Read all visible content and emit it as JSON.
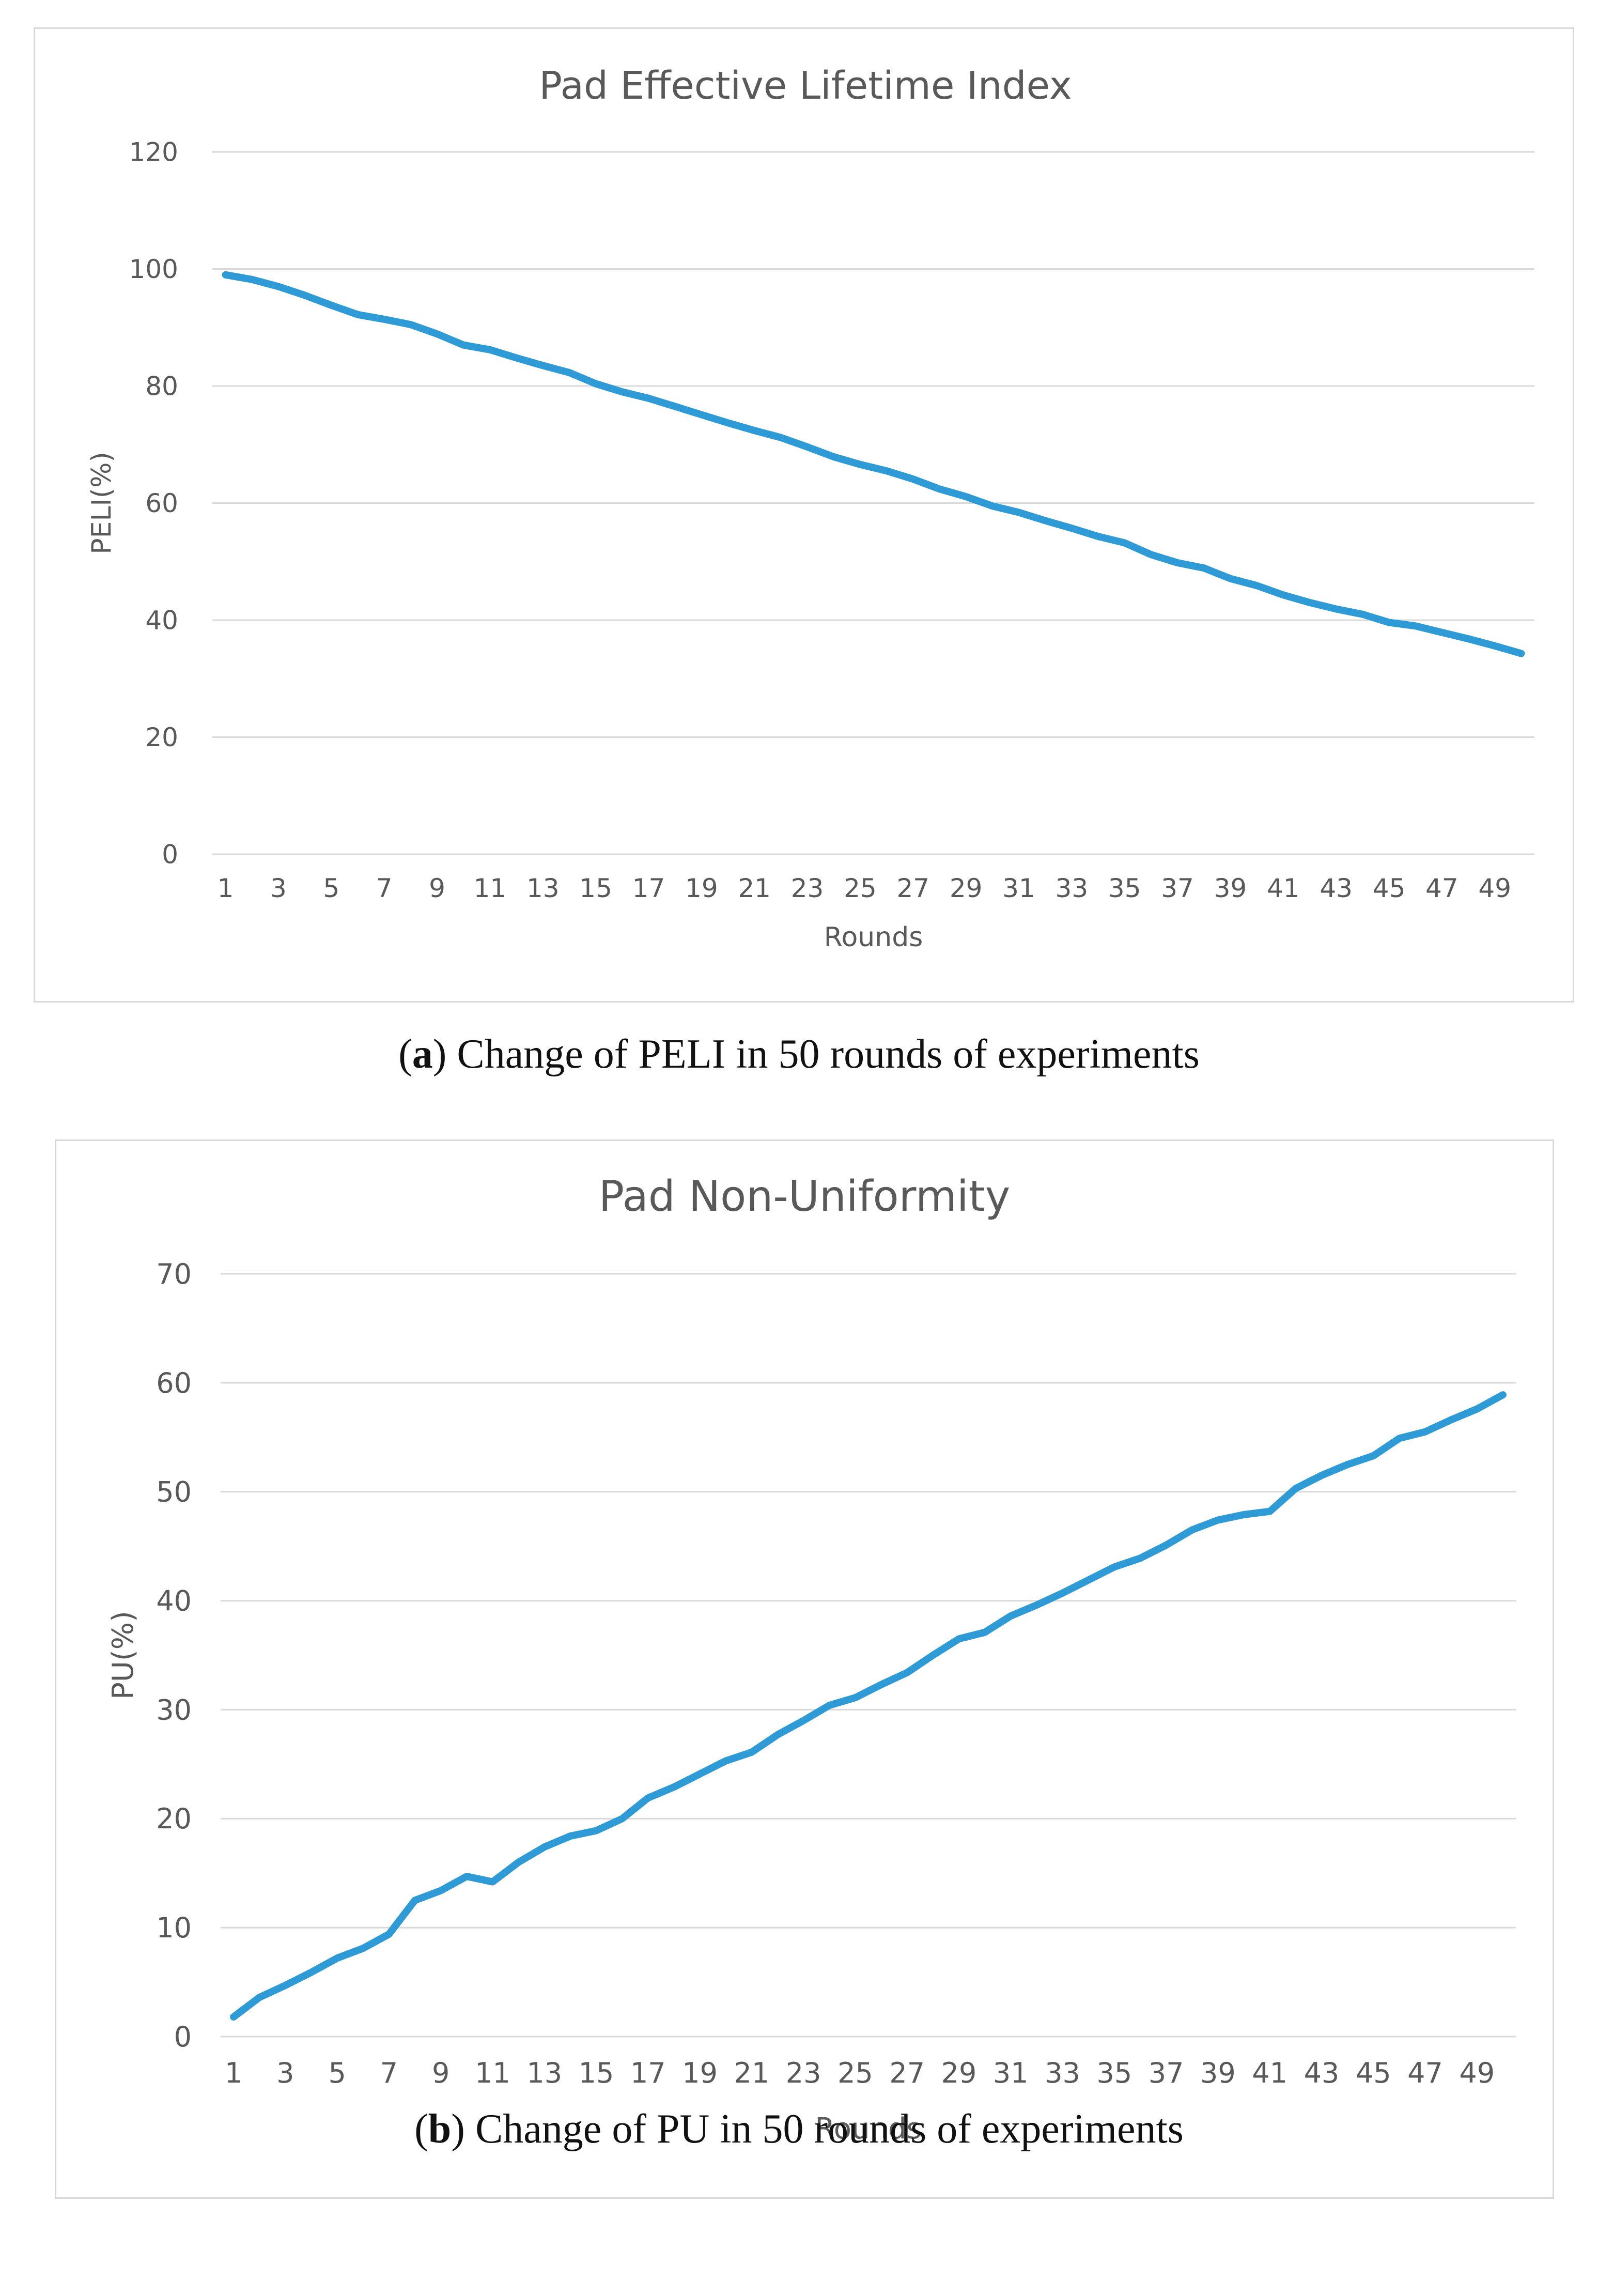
{
  "captions": [
    {
      "letter": "a",
      "text": ") Change of PELI in 50 rounds of experiments",
      "open": "("
    },
    {
      "letter": "b",
      "text": ") Change of PU in 50 rounds of experiments",
      "open": "("
    }
  ],
  "chart_data": [
    {
      "type": "line",
      "title": "Pad Effective Lifetime Index",
      "xlabel": "Rounds",
      "ylabel": "PELI(%)",
      "ylim": [
        0,
        120
      ],
      "yticks": [
        0,
        20,
        40,
        60,
        80,
        100,
        120
      ],
      "grid": true,
      "color": "#2e9bd6",
      "x": [
        1,
        2,
        3,
        4,
        5,
        6,
        7,
        8,
        9,
        10,
        11,
        12,
        13,
        14,
        15,
        16,
        17,
        18,
        19,
        20,
        21,
        22,
        23,
        24,
        25,
        26,
        27,
        28,
        29,
        30,
        31,
        32,
        33,
        34,
        35,
        36,
        37,
        38,
        39,
        40,
        41,
        42,
        43,
        44,
        45,
        46,
        47,
        48,
        49,
        50
      ],
      "xticks": [
        "1",
        "3",
        "5",
        "7",
        "9",
        "11",
        "13",
        "15",
        "17",
        "19",
        "21",
        "23",
        "25",
        "27",
        "29",
        "31",
        "33",
        "35",
        "37",
        "39",
        "41",
        "43",
        "45",
        "47",
        "49"
      ],
      "values": [
        99,
        98.2,
        97,
        95.5,
        93.8,
        92.2,
        91.4,
        90.5,
        88.9,
        87,
        86.2,
        84.8,
        83.5,
        82.3,
        80.4,
        79,
        77.9,
        76.5,
        75.1,
        73.7,
        72.4,
        71.2,
        69.6,
        67.9,
        66.6,
        65.5,
        64.1,
        62.4,
        61.1,
        59.5,
        58.4,
        57,
        55.7,
        54.3,
        53.2,
        51.2,
        49.8,
        48.9,
        47.1,
        45.9,
        44.3,
        43,
        41.9,
        41,
        39.6,
        39,
        37.9,
        36.8,
        35.6,
        34.3
      ]
    },
    {
      "type": "line",
      "title": "Pad Non-Uniformity",
      "xlabel": "Rounds",
      "ylabel": "PU(%)",
      "ylim": [
        0,
        70
      ],
      "yticks": [
        0,
        10,
        20,
        30,
        40,
        50,
        60,
        70
      ],
      "grid": true,
      "color": "#2e9bd6",
      "x": [
        1,
        2,
        3,
        4,
        5,
        6,
        7,
        8,
        9,
        10,
        11,
        12,
        13,
        14,
        15,
        16,
        17,
        18,
        19,
        20,
        21,
        22,
        23,
        24,
        25,
        26,
        27,
        28,
        29,
        30,
        31,
        32,
        33,
        34,
        35,
        36,
        37,
        38,
        39,
        40,
        41,
        42,
        43,
        44,
        45,
        46,
        47,
        48,
        49,
        50
      ],
      "xticks": [
        "1",
        "3",
        "5",
        "7",
        "9",
        "11",
        "13",
        "15",
        "17",
        "19",
        "21",
        "23",
        "25",
        "27",
        "29",
        "31",
        "33",
        "35",
        "37",
        "39",
        "41",
        "43",
        "45",
        "47",
        "49"
      ],
      "values": [
        1.8,
        3.6,
        4.7,
        5.9,
        7.2,
        8.1,
        9.4,
        12.5,
        13.4,
        14.7,
        14.2,
        16,
        17.4,
        18.4,
        18.9,
        20,
        21.9,
        22.9,
        24.1,
        25.3,
        26.1,
        27.7,
        29,
        30.4,
        31.1,
        32.3,
        33.4,
        35,
        36.5,
        37.1,
        38.6,
        39.6,
        40.7,
        41.9,
        43.1,
        43.9,
        45.1,
        46.5,
        47.4,
        47.9,
        48.2,
        50.3,
        51.5,
        52.5,
        53.3,
        54.9,
        55.5,
        56.6,
        57.6,
        58.9
      ]
    }
  ]
}
